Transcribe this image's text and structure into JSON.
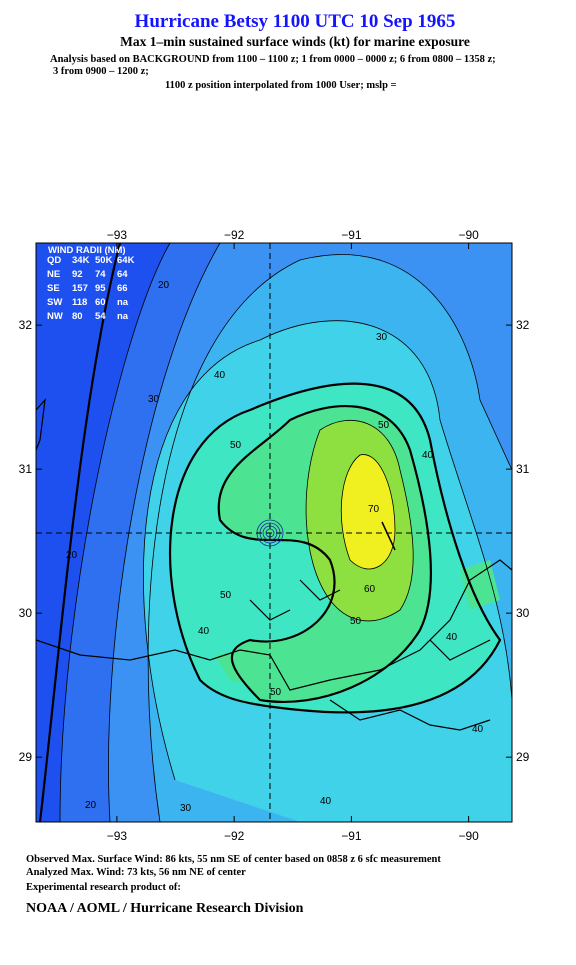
{
  "header": {
    "title": "Hurricane Betsy 1100 UTC 10 Sep 1965",
    "subtitle": "Max 1–min sustained surface winds (kt) for marine exposure",
    "analysis": [
      "Analysis based on  BACKGROUND from 1100 – 1100 z;  1 from 0000 – 0000 z;  6 from 0800 – 1358 z;",
      "3 from 0900 – 1200 z;",
      "1100 z position interpolated from 1000 User; mslp ="
    ]
  },
  "map": {
    "xlim": [
      -93.69,
      -89.63
    ],
    "ylim": [
      28.55,
      32.57
    ],
    "xticks": [
      {
        "value": -93,
        "label": "−93"
      },
      {
        "value": -92,
        "label": "−92"
      },
      {
        "value": -91,
        "label": "−91"
      },
      {
        "value": -90,
        "label": "−90"
      }
    ],
    "yticks": [
      29,
      30,
      31,
      32
    ],
    "wind_radii": {
      "title": "WIND RADII (NM)",
      "header": [
        "QD",
        "34K",
        "50K",
        "64K"
      ],
      "rows": [
        [
          "NE",
          92,
          74,
          64
        ],
        [
          "SE",
          157,
          95,
          66
        ],
        [
          "SW",
          118,
          60,
          "na"
        ],
        [
          "NW",
          80,
          54,
          "na"
        ]
      ]
    },
    "contour_labels": [
      20,
      30,
      30,
      40,
      50,
      50,
      40,
      70,
      60,
      50,
      50,
      40,
      20,
      40,
      50,
      40,
      40,
      30,
      20
    ]
  },
  "footer": {
    "lines": [
      "Observed Max. Surface Wind: 86 kts, 55 nm SE of center based on 0858 z 6 sfc measurement",
      "Analyzed Max. Wind: 73 kts, 56 nm NE of center",
      "Experimental research product of:"
    ],
    "org": "NOAA / AOML / Hurricane Research Division"
  }
}
